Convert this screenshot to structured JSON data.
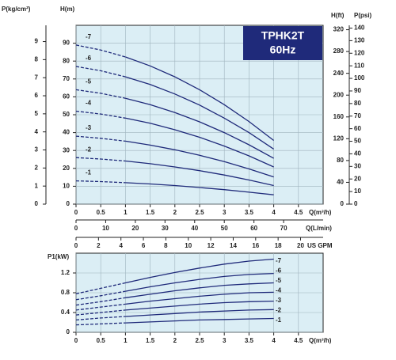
{
  "chart_data": [
    {
      "type": "line",
      "title": "TPHK2T",
      "subtitle": "60Hz",
      "x": [
        0,
        0.5,
        1,
        1.5,
        2,
        2.5,
        3,
        3.5,
        4
      ],
      "xlim": [
        0,
        5
      ],
      "xticks": [
        0,
        0.5,
        1,
        1.5,
        2,
        2.5,
        3,
        3.5,
        4,
        4.5
      ],
      "xlabel": "Q(m³/h)",
      "ylim": [
        0,
        100
      ],
      "yticks": [
        0,
        10,
        20,
        30,
        40,
        50,
        60,
        70,
        80,
        90
      ],
      "ylabel": "H(m)",
      "left_axis": {
        "label": "P(kg/cm²)",
        "lim": [
          0,
          9.9
        ],
        "ticks": [
          0,
          1,
          2,
          3,
          4,
          5,
          6,
          7,
          8,
          9
        ]
      },
      "right_axes": [
        {
          "label": "H(ft)",
          "lim": [
            0,
            328.08
          ],
          "ticks": [
            0,
            40,
            80,
            120,
            160,
            200,
            240,
            280,
            320
          ]
        },
        {
          "label": "P(psi)",
          "lim": [
            0,
            142.2
          ],
          "ticks": [
            0,
            10,
            20,
            30,
            40,
            50,
            60,
            70,
            80,
            90,
            100,
            110,
            120,
            130,
            140
          ]
        }
      ],
      "extra_x_axes": [
        {
          "label": "Q(L/min)",
          "lim": [
            0,
            83.33
          ],
          "ticks": [
            0,
            10,
            20,
            30,
            40,
            50,
            60,
            70
          ]
        },
        {
          "label": "US GPM",
          "lim": [
            0,
            22.01
          ],
          "ticks": [
            0,
            2,
            4,
            6,
            8,
            10,
            12,
            14,
            16,
            18,
            20
          ]
        }
      ],
      "grid": true,
      "series": [
        {
          "name": "-7",
          "color": "#1f2a7a",
          "values": [
            89,
            86.2,
            82.3,
            77.3,
            71.2,
            64,
            55.6,
            46.2,
            35.6
          ]
        },
        {
          "name": "-6",
          "color": "#1f2a7a",
          "values": [
            77,
            74.6,
            71.2,
            66.9,
            61.6,
            55.4,
            48.1,
            40,
            30.8
          ]
        },
        {
          "name": "-5",
          "color": "#1f2a7a",
          "values": [
            64,
            62,
            59.2,
            55.6,
            51.2,
            46,
            40,
            33.2,
            25.6
          ]
        },
        {
          "name": "-4",
          "color": "#1f2a7a",
          "values": [
            52,
            50.4,
            48.1,
            45.2,
            41.6,
            37.4,
            32.5,
            27,
            20.8
          ]
        },
        {
          "name": "-3",
          "color": "#1f2a7a",
          "values": [
            38,
            36.8,
            35.2,
            33,
            30.4,
            27.3,
            23.8,
            19.7,
            15.2
          ]
        },
        {
          "name": "-2",
          "color": "#1f2a7a",
          "values": [
            26,
            25.2,
            24.1,
            22.6,
            20.8,
            18.7,
            16.3,
            13.5,
            10.4
          ]
        },
        {
          "name": "-1",
          "color": "#1f2a7a",
          "values": [
            13,
            12.6,
            12,
            11.3,
            10.4,
            9.3,
            8.1,
            6.7,
            5.2
          ]
        }
      ]
    },
    {
      "type": "line",
      "x": [
        0,
        0.5,
        1,
        1.5,
        2,
        2.5,
        3,
        3.5,
        4
      ],
      "xlim": [
        0,
        5
      ],
      "xticks": [
        0,
        0.5,
        1,
        1.5,
        2,
        2.5,
        3,
        3.5,
        4,
        4.5
      ],
      "xlabel": "Q(m³/h)",
      "ylim": [
        0,
        1.6
      ],
      "yticks": [
        0,
        0.4,
        0.8,
        1.2
      ],
      "ylabel": "P1(kW)",
      "grid": true,
      "series": [
        {
          "name": "-7",
          "color": "#1f2a7a",
          "values": [
            0.78,
            0.89,
            1.0,
            1.11,
            1.21,
            1.3,
            1.38,
            1.44,
            1.48
          ]
        },
        {
          "name": "-6",
          "color": "#1f2a7a",
          "values": [
            0.66,
            0.74,
            0.83,
            0.92,
            1.0,
            1.07,
            1.13,
            1.17,
            1.19
          ]
        },
        {
          "name": "-5",
          "color": "#1f2a7a",
          "values": [
            0.55,
            0.62,
            0.7,
            0.77,
            0.84,
            0.9,
            0.95,
            0.98,
            1.0
          ]
        },
        {
          "name": "-4",
          "color": "#1f2a7a",
          "values": [
            0.45,
            0.51,
            0.57,
            0.63,
            0.68,
            0.73,
            0.77,
            0.8,
            0.81
          ]
        },
        {
          "name": "-3",
          "color": "#1f2a7a",
          "values": [
            0.35,
            0.4,
            0.45,
            0.49,
            0.53,
            0.57,
            0.6,
            0.62,
            0.63
          ]
        },
        {
          "name": "-2",
          "color": "#1f2a7a",
          "values": [
            0.25,
            0.29,
            0.32,
            0.35,
            0.38,
            0.41,
            0.43,
            0.45,
            0.46
          ]
        },
        {
          "name": "-1",
          "color": "#1f2a7a",
          "values": [
            0.15,
            0.17,
            0.19,
            0.21,
            0.23,
            0.25,
            0.26,
            0.27,
            0.28
          ]
        }
      ]
    }
  ]
}
